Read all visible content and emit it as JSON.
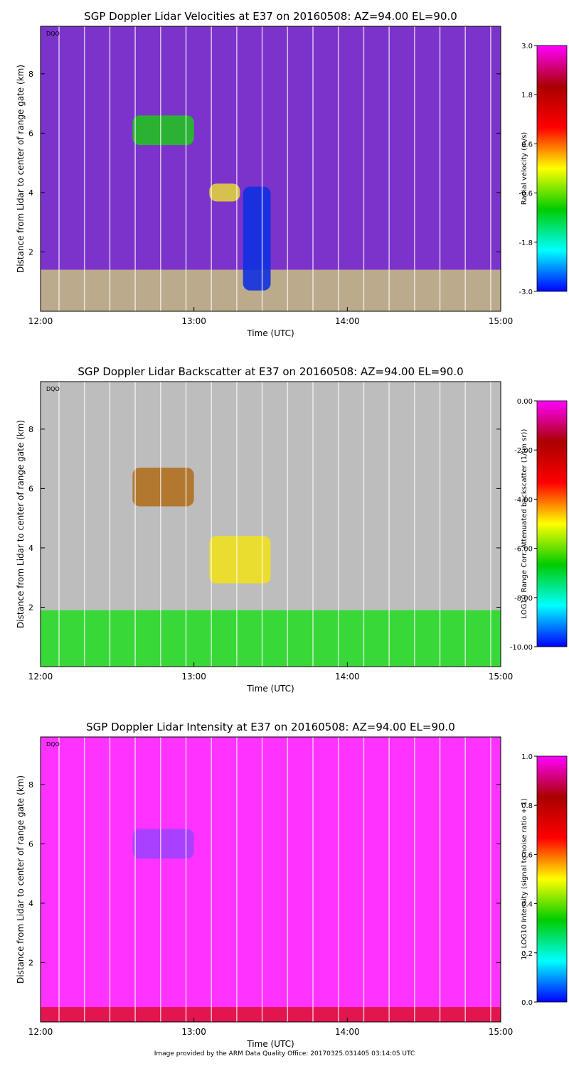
{
  "credit": "Image provided by the ARM Data Quality Office: 20170325.031405 03:14:05 UTC",
  "chart_data": [
    {
      "type": "heatmap",
      "title": "SGP Doppler Lidar Velocities at E37 on 20160508: AZ=94.00 EL=90.0",
      "xlabel": "Time (UTC)",
      "ylabel": "Distance from Lidar to center of range gate (km)",
      "x_ticks": [
        "12:00",
        "13:00",
        "14:00",
        "15:00"
      ],
      "y_ticks": [
        2,
        4,
        6,
        8
      ],
      "ylim": [
        0,
        9.6
      ],
      "corner_label": "DQO",
      "colorbar": {
        "label": "Radial velocity (m/s)",
        "ticks": [
          "3.0",
          "1.8",
          "0.6",
          "-0.6",
          "-1.8",
          "-3.0"
        ],
        "range": [
          -3.0,
          3.0
        ],
        "colors": [
          "#0000ff",
          "#00ffff",
          "#00cc00",
          "#ffff00",
          "#ff0000",
          "#aa0000",
          "#ff00ff"
        ]
      },
      "background": "#7c33cc",
      "features": [
        {
          "kind": "low-level aerosol layer (yellow/grey)",
          "t0": 12.0,
          "t1": 15.0,
          "z0": 0.0,
          "z1": 1.4,
          "color": "#c8c080"
        },
        {
          "kind": "cloud (green)",
          "t0": 12.6,
          "t1": 13.0,
          "z0": 5.6,
          "z1": 6.6,
          "color": "#22c022"
        },
        {
          "kind": "cloud layer (yellow)",
          "t0": 13.1,
          "t1": 13.3,
          "z0": 3.7,
          "z1": 4.3,
          "color": "#e0d040"
        },
        {
          "kind": "downward velocity (blue)",
          "t0": 13.32,
          "t1": 13.5,
          "z0": 0.7,
          "z1": 4.2,
          "color": "#1030e0"
        }
      ]
    },
    {
      "type": "heatmap",
      "title": "SGP Doppler Lidar Backscatter at E37 on 20160508: AZ=94.00 EL=90.0",
      "xlabel": "Time (UTC)",
      "ylabel": "Distance from Lidar to center of range gate (km)",
      "x_ticks": [
        "12:00",
        "13:00",
        "14:00",
        "15:00"
      ],
      "y_ticks": [
        2,
        4,
        6,
        8
      ],
      "ylim": [
        0,
        9.6
      ],
      "corner_label": "DQO",
      "colorbar": {
        "label": "LOG10 Range Corr. Attenuated backscatter (1/(m sr))",
        "ticks": [
          "0.00",
          "-2.00",
          "-4.00",
          "-6.00",
          "-8.00",
          "-10.00"
        ],
        "range": [
          -10.0,
          0.0
        ],
        "colors": [
          "#0000ff",
          "#00ffff",
          "#00cc00",
          "#ffff00",
          "#ff0000",
          "#aa0000",
          "#ff00ff"
        ]
      },
      "background": "#bdbdbd",
      "features": [
        {
          "kind": "near-surface aerosol (green)",
          "t0": 12.0,
          "t1": 15.0,
          "z0": 0.0,
          "z1": 1.9,
          "color": "#22dd22"
        },
        {
          "kind": "cloud (yellow/brown)",
          "t0": 12.6,
          "t1": 13.0,
          "z0": 5.4,
          "z1": 6.7,
          "color": "#b07020"
        },
        {
          "kind": "cloud base layer",
          "t0": 13.1,
          "t1": 13.5,
          "z0": 2.8,
          "z1": 4.4,
          "color": "#f0e020"
        }
      ]
    },
    {
      "type": "heatmap",
      "title": "SGP Doppler Lidar Intensity at E37 on 20160508: AZ=94.00 EL=90.0",
      "xlabel": "Time (UTC)",
      "ylabel": "Distance from Lidar to center of range gate (km)",
      "x_ticks": [
        "12:00",
        "13:00",
        "14:00",
        "15:00"
      ],
      "y_ticks": [
        2,
        4,
        6,
        8
      ],
      "ylim": [
        0,
        9.6
      ],
      "corner_label": "DQO",
      "colorbar": {
        "label": "1 - LOG10 Intensity (signal to noise ratio + 1)",
        "ticks": [
          "1.0",
          "0.8",
          "0.6",
          "0.4",
          "0.2",
          "0.0"
        ],
        "range": [
          0.0,
          1.0
        ],
        "colors": [
          "#0000ff",
          "#00ffff",
          "#00cc00",
          "#ffff00",
          "#ff0000",
          "#aa0000",
          "#ff00ff"
        ]
      },
      "background": "#ff33ff",
      "features": [
        {
          "kind": "near-surface return (red)",
          "t0": 12.0,
          "t1": 15.0,
          "z0": 0.0,
          "z1": 0.5,
          "color": "#dd1030"
        },
        {
          "kind": "cloud (violet)",
          "t0": 12.6,
          "t1": 13.0,
          "z0": 5.5,
          "z1": 6.5,
          "color": "#a040ff"
        }
      ]
    }
  ]
}
